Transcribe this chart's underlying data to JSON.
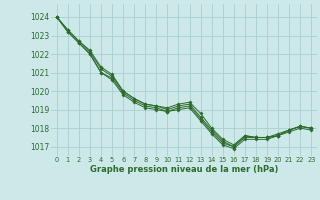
{
  "xlabel": "Graphe pression niveau de la mer (hPa)",
  "background_color": "#cce8e8",
  "grid_color": "#aacfcf",
  "line_color": "#2d6b2d",
  "marker_color": "#2d6b2d",
  "ylim": [
    1016.5,
    1024.7
  ],
  "xlim": [
    -0.5,
    23.5
  ],
  "yticks": [
    1017,
    1018,
    1019,
    1020,
    1021,
    1022,
    1023,
    1024
  ],
  "xticks": [
    0,
    1,
    2,
    3,
    4,
    5,
    6,
    7,
    8,
    9,
    10,
    11,
    12,
    13,
    14,
    15,
    16,
    17,
    18,
    19,
    20,
    21,
    22,
    23
  ],
  "series": [
    [
      1024.0,
      1023.3,
      1022.7,
      1022.2,
      1021.3,
      1020.9,
      1020.0,
      1019.6,
      1019.3,
      1019.2,
      1019.1,
      1019.3,
      1019.4,
      1018.8,
      1018.0,
      1017.4,
      1017.1,
      1017.6,
      1017.5,
      1017.5,
      1017.6,
      1017.9,
      1018.1,
      1018.0
    ],
    [
      1024.0,
      1023.3,
      1022.7,
      1022.1,
      1021.2,
      1020.8,
      1020.0,
      1019.6,
      1019.3,
      1019.2,
      1019.0,
      1019.2,
      1019.3,
      1018.6,
      1017.9,
      1017.3,
      1017.0,
      1017.6,
      1017.5,
      1017.5,
      1017.7,
      1017.9,
      1018.1,
      1018.0
    ],
    [
      1024.0,
      1023.2,
      1022.6,
      1022.0,
      1021.0,
      1020.7,
      1019.9,
      1019.5,
      1019.2,
      1019.1,
      1018.9,
      1019.1,
      1019.2,
      1018.5,
      1017.8,
      1017.2,
      1017.0,
      1017.5,
      1017.5,
      1017.5,
      1017.6,
      1017.9,
      1018.1,
      1018.0
    ],
    [
      1024.0,
      1023.2,
      1022.6,
      1022.0,
      1021.0,
      1020.6,
      1019.8,
      1019.4,
      1019.1,
      1019.0,
      1018.9,
      1019.0,
      1019.1,
      1018.4,
      1017.7,
      1017.1,
      1016.9,
      1017.4,
      1017.4,
      1017.4,
      1017.6,
      1017.8,
      1018.0,
      1017.9
    ]
  ]
}
